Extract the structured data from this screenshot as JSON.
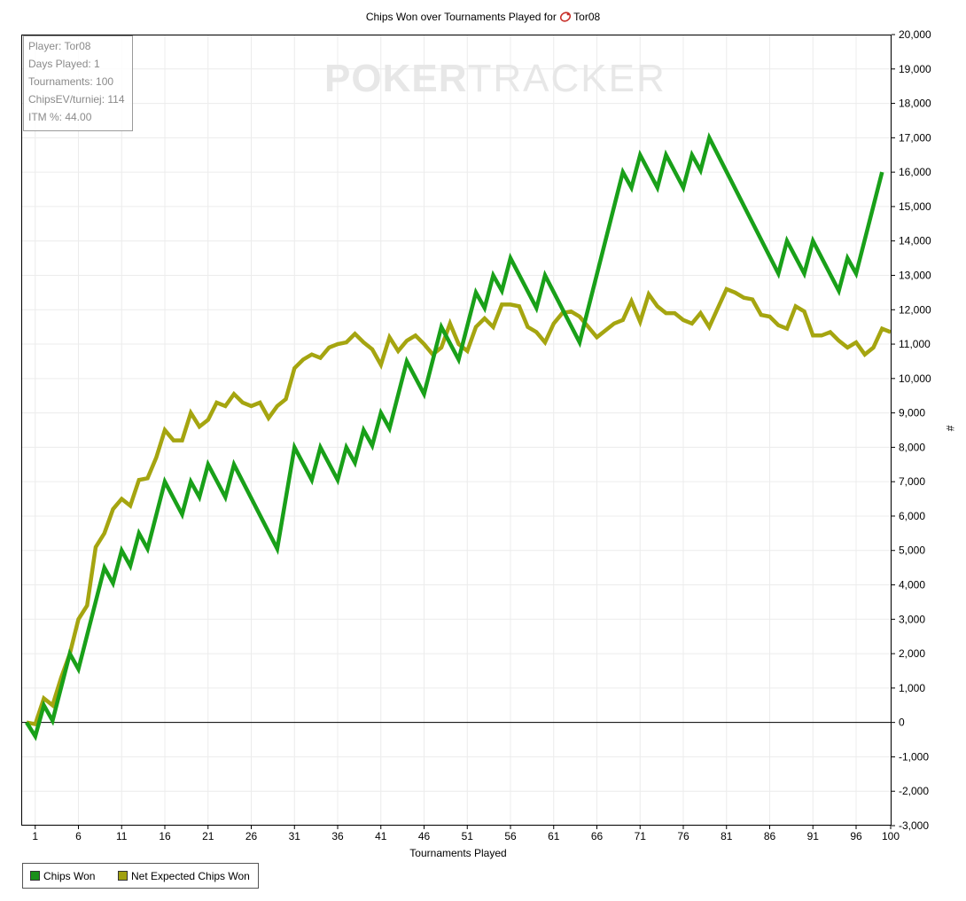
{
  "title_prefix": "Chips Won over Tournaments Played for",
  "player_name": "Tor08",
  "watermark": {
    "part1": "POKER",
    "part2": "TRACKER"
  },
  "stats": [
    "Player: Tor08",
    "Days Played: 1",
    "Tournaments: 100",
    "ChipsEV/turniej: 114",
    "ITM %: 44.00"
  ],
  "legend": [
    {
      "label": "Chips Won",
      "color": "#1a8f1a"
    },
    {
      "label": "Net Expected Chips Won",
      "color": "#a0a010"
    }
  ],
  "colors": {
    "chips_won": "#19a019",
    "net_expected": "#a5a510",
    "grid": "#ececec",
    "zero_line": "#000000"
  },
  "chart_data": {
    "type": "line",
    "title": "Chips Won over Tournaments Played for Tor08",
    "xlabel": "Tournaments Played",
    "ylabel": "#",
    "xlim": [
      0,
      100
    ],
    "ylim": [
      -3000,
      20000
    ],
    "grid": true,
    "legend_position": "bottom-left",
    "x_ticks": [
      1,
      6,
      11,
      16,
      21,
      26,
      31,
      36,
      41,
      46,
      51,
      56,
      61,
      66,
      71,
      76,
      81,
      86,
      91,
      96,
      100
    ],
    "y_ticks": [
      -3000,
      -2000,
      -1000,
      0,
      1000,
      2000,
      3000,
      4000,
      5000,
      6000,
      7000,
      8000,
      9000,
      10000,
      11000,
      12000,
      13000,
      14000,
      15000,
      16000,
      17000,
      18000,
      19000,
      20000
    ],
    "y_tick_labels": [
      "-3,000",
      "-2,000",
      "-1,000",
      "0",
      "1,000",
      "2,000",
      "3,000",
      "4,000",
      "5,000",
      "6,000",
      "7,000",
      "8,000",
      "9,000",
      "10,000",
      "11,000",
      "12,000",
      "13,000",
      "14,000",
      "15,000",
      "16,000",
      "17,000",
      "18,000",
      "19,000",
      "20,000"
    ],
    "series": [
      {
        "name": "Chips Won",
        "points": [
          [
            0,
            0
          ],
          [
            1,
            -400
          ],
          [
            2,
            500
          ],
          [
            3,
            50
          ],
          [
            5,
            2000
          ],
          [
            6,
            1550
          ],
          [
            9,
            4500
          ],
          [
            10,
            4050
          ],
          [
            11,
            5000
          ],
          [
            12,
            4550
          ],
          [
            13,
            5500
          ],
          [
            14,
            5050
          ],
          [
            16,
            7000
          ],
          [
            18,
            6050
          ],
          [
            19,
            7000
          ],
          [
            20,
            6550
          ],
          [
            21,
            7500
          ],
          [
            23,
            6550
          ],
          [
            24,
            7500
          ],
          [
            29,
            5050
          ],
          [
            31,
            8000
          ],
          [
            33,
            7050
          ],
          [
            34,
            8000
          ],
          [
            36,
            7050
          ],
          [
            37,
            8000
          ],
          [
            38,
            7550
          ],
          [
            39,
            8500
          ],
          [
            40,
            8050
          ],
          [
            41,
            9000
          ],
          [
            42,
            8550
          ],
          [
            44,
            10500
          ],
          [
            46,
            9550
          ],
          [
            48,
            11500
          ],
          [
            50,
            10550
          ],
          [
            52,
            12500
          ],
          [
            53,
            12050
          ],
          [
            54,
            13000
          ],
          [
            55,
            12550
          ],
          [
            56,
            13500
          ],
          [
            59,
            12050
          ],
          [
            60,
            13000
          ],
          [
            64,
            11050
          ],
          [
            69,
            16000
          ],
          [
            70,
            15550
          ],
          [
            71,
            16500
          ],
          [
            73,
            15550
          ],
          [
            74,
            16500
          ],
          [
            76,
            15550
          ],
          [
            77,
            16500
          ],
          [
            78,
            16050
          ],
          [
            79,
            17000
          ],
          [
            87,
            13050
          ],
          [
            88,
            14000
          ],
          [
            90,
            13050
          ],
          [
            91,
            14000
          ],
          [
            94,
            12550
          ],
          [
            95,
            13500
          ],
          [
            96,
            13050
          ],
          [
            99,
            16000
          ]
        ]
      },
      {
        "name": "Net Expected Chips Won",
        "points": [
          [
            0,
            0
          ],
          [
            1,
            -50
          ],
          [
            2,
            700
          ],
          [
            3,
            500
          ],
          [
            4,
            1300
          ],
          [
            5,
            2000
          ],
          [
            6,
            3000
          ],
          [
            7,
            3400
          ],
          [
            8,
            5100
          ],
          [
            9,
            5500
          ],
          [
            10,
            6200
          ],
          [
            11,
            6500
          ],
          [
            12,
            6300
          ],
          [
            13,
            7050
          ],
          [
            14,
            7100
          ],
          [
            15,
            7700
          ],
          [
            16,
            8500
          ],
          [
            17,
            8200
          ],
          [
            18,
            8200
          ],
          [
            19,
            9000
          ],
          [
            20,
            8600
          ],
          [
            21,
            8800
          ],
          [
            22,
            9300
          ],
          [
            23,
            9200
          ],
          [
            24,
            9550
          ],
          [
            25,
            9300
          ],
          [
            26,
            9200
          ],
          [
            27,
            9300
          ],
          [
            28,
            8850
          ],
          [
            29,
            9200
          ],
          [
            30,
            9400
          ],
          [
            31,
            10300
          ],
          [
            32,
            10550
          ],
          [
            33,
            10700
          ],
          [
            34,
            10600
          ],
          [
            35,
            10900
          ],
          [
            36,
            11000
          ],
          [
            37,
            11050
          ],
          [
            38,
            11300
          ],
          [
            39,
            11050
          ],
          [
            40,
            10850
          ],
          [
            41,
            10400
          ],
          [
            42,
            11200
          ],
          [
            43,
            10800
          ],
          [
            44,
            11100
          ],
          [
            45,
            11250
          ],
          [
            46,
            11000
          ],
          [
            47,
            10700
          ],
          [
            48,
            10900
          ],
          [
            49,
            11600
          ],
          [
            50,
            11000
          ],
          [
            51,
            10800
          ],
          [
            52,
            11500
          ],
          [
            53,
            11750
          ],
          [
            54,
            11500
          ],
          [
            55,
            12150
          ],
          [
            56,
            12150
          ],
          [
            57,
            12100
          ],
          [
            58,
            11500
          ],
          [
            59,
            11350
          ],
          [
            60,
            11050
          ],
          [
            61,
            11600
          ],
          [
            62,
            11900
          ],
          [
            63,
            11950
          ],
          [
            64,
            11800
          ],
          [
            65,
            11500
          ],
          [
            66,
            11200
          ],
          [
            67,
            11400
          ],
          [
            68,
            11600
          ],
          [
            69,
            11700
          ],
          [
            70,
            12250
          ],
          [
            71,
            11650
          ],
          [
            72,
            12450
          ],
          [
            73,
            12100
          ],
          [
            74,
            11900
          ],
          [
            75,
            11900
          ],
          [
            76,
            11700
          ],
          [
            77,
            11600
          ],
          [
            78,
            11900
          ],
          [
            79,
            11500
          ],
          [
            80,
            12050
          ],
          [
            81,
            12600
          ],
          [
            82,
            12500
          ],
          [
            83,
            12350
          ],
          [
            84,
            12300
          ],
          [
            85,
            11850
          ],
          [
            86,
            11800
          ],
          [
            87,
            11550
          ],
          [
            88,
            11450
          ],
          [
            89,
            12100
          ],
          [
            90,
            11950
          ],
          [
            91,
            11250
          ],
          [
            92,
            11250
          ],
          [
            93,
            11350
          ],
          [
            94,
            11100
          ],
          [
            95,
            10900
          ],
          [
            96,
            11050
          ],
          [
            97,
            10700
          ],
          [
            98,
            10900
          ],
          [
            99,
            11450
          ],
          [
            100,
            11350
          ]
        ]
      }
    ]
  }
}
